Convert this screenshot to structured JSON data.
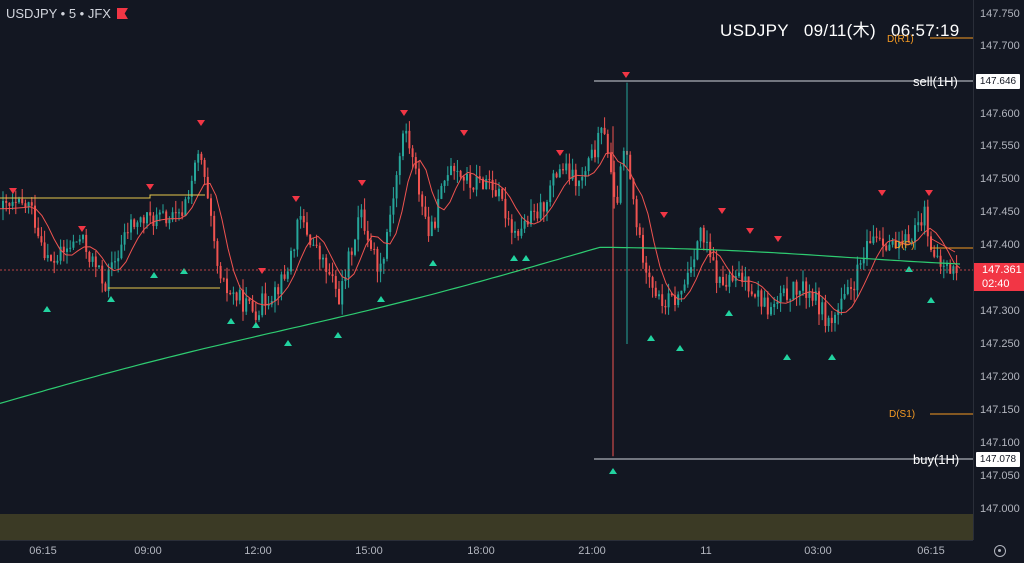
{
  "header": {
    "symbol": "USDJPY • 5 • JFX",
    "clock_symbol": "USDJPY",
    "clock_date": "09/11(木)",
    "clock_time": "06:57:19"
  },
  "levels": {
    "sell_label": "sell(1H)",
    "sell_value": "147.646",
    "buy_label": "buy(1H)",
    "buy_value": "147.078",
    "current_price": "147.361",
    "countdown": "02:40",
    "pivot_r1": "D(R1)",
    "pivot_p": "D(P)",
    "pivot_s1": "D(S1)"
  },
  "price_axis": {
    "ticks": [
      "147.750",
      "147.700",
      "147.600",
      "147.550",
      "147.500",
      "147.450",
      "147.400",
      "147.300",
      "147.250",
      "147.200",
      "147.150",
      "147.100",
      "147.050",
      "147.000"
    ]
  },
  "time_axis": {
    "ticks": [
      "06:15",
      "09:00",
      "12:00",
      "15:00",
      "18:00",
      "21:00",
      "11",
      "03:00",
      "06:15"
    ]
  },
  "colors": {
    "background": "#131722",
    "bull": "#26a69a",
    "bear": "#ef5350",
    "ma_fast": "#ef5350",
    "ma_slow": "#2ecc71",
    "pivot": "#f59a23",
    "box": "#e6c74c",
    "volume_band": "#3b3a25"
  }
}
